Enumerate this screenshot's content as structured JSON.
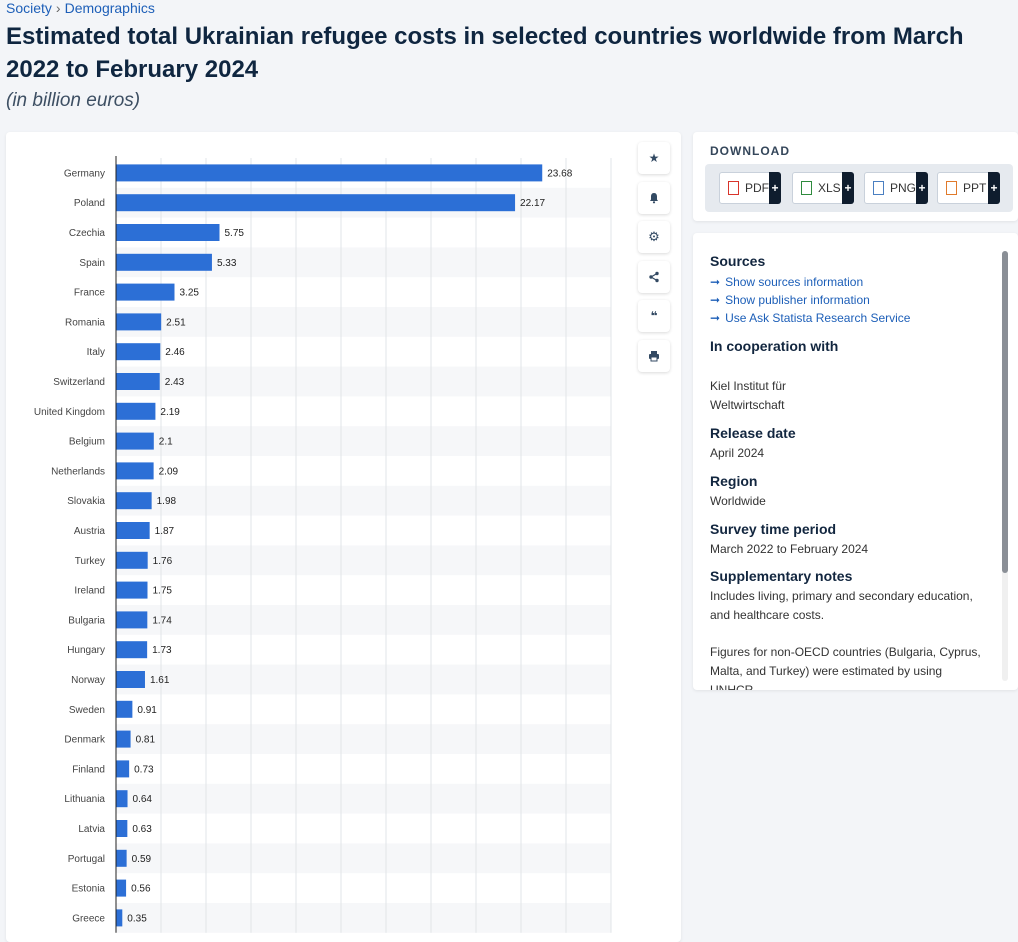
{
  "breadcrumb": {
    "parent": "Society",
    "current": "Demographics",
    "separator": "›"
  },
  "header": {
    "title": "Estimated total Ukrainian refugee costs in selected countries worldwide from March 2022 to February 2024",
    "subtitle": "(in billion euros)"
  },
  "toolbar": {
    "icons": [
      "star-icon",
      "bell-icon",
      "gear-icon",
      "share-icon",
      "quote-icon",
      "print-icon"
    ]
  },
  "download": {
    "title": "DOWNLOAD",
    "formats": [
      {
        "label": "PDF",
        "color": "#d9342b"
      },
      {
        "label": "XLS",
        "color": "#2e8b3d"
      },
      {
        "label": "PNG",
        "color": "#4a7fc1"
      },
      {
        "label": "PPT",
        "color": "#e07a2b"
      }
    ],
    "plus": "+"
  },
  "info": {
    "sources_heading": "Sources",
    "links": [
      "Show sources information",
      "Show publisher information",
      "Use Ask Statista Research Service"
    ],
    "cooperation_heading": "In cooperation with",
    "cooperation_value": "Kiel Institut für Weltwirtschaft",
    "release_heading": "Release date",
    "release_value": "April 2024",
    "region_heading": "Region",
    "region_value": "Worldwide",
    "survey_heading": "Survey time period",
    "survey_value": "March 2022 to February 2024",
    "notes_heading": "Supplementary notes",
    "notes_value_1": "Includes living, primary and secondary education, and healthcare costs.",
    "notes_value_2": "Figures for non-OECD countries (Bulgaria, Cyprus, Malta, and Turkey) were estimated by using UNHCR"
  },
  "colors": {
    "bar": "#2c6fd6",
    "link": "#1d5fb8",
    "title": "#0f2640"
  },
  "chart_data": {
    "type": "bar",
    "orientation": "horizontal",
    "categories": [
      "Germany",
      "Poland",
      "Czechia",
      "Spain",
      "France",
      "Romania",
      "Italy",
      "Switzerland",
      "United Kingdom",
      "Belgium",
      "Netherlands",
      "Slovakia",
      "Austria",
      "Turkey",
      "Ireland",
      "Bulgaria",
      "Hungary",
      "Norway",
      "Sweden",
      "Denmark",
      "Finland",
      "Lithuania",
      "Latvia",
      "Portugal",
      "Estonia",
      "Greece"
    ],
    "values": [
      23.68,
      22.17,
      5.75,
      5.33,
      3.25,
      2.51,
      2.46,
      2.43,
      2.19,
      2.1,
      2.09,
      1.98,
      1.87,
      1.76,
      1.75,
      1.74,
      1.73,
      1.61,
      0.91,
      0.81,
      0.73,
      0.64,
      0.63,
      0.59,
      0.56,
      0.35
    ],
    "value_labels": [
      "23.68",
      "22.17",
      "5.75",
      "5.33",
      "3.25",
      "2.51",
      "2.46",
      "2.43",
      "2.19",
      "2.1",
      "2.09",
      "1.98",
      "1.87",
      "1.76",
      "1.75",
      "1.74",
      "1.73",
      "1.61",
      "0.91",
      "0.81",
      "0.73",
      "0.64",
      "0.63",
      "0.59",
      "0.56",
      "0.35"
    ],
    "title": "Estimated total Ukrainian refugee costs in selected countries worldwide from March 2022 to February 2024",
    "xlabel": "",
    "ylabel": "",
    "xlim": [
      0,
      27.5
    ],
    "grid": true,
    "data_labels": true
  }
}
